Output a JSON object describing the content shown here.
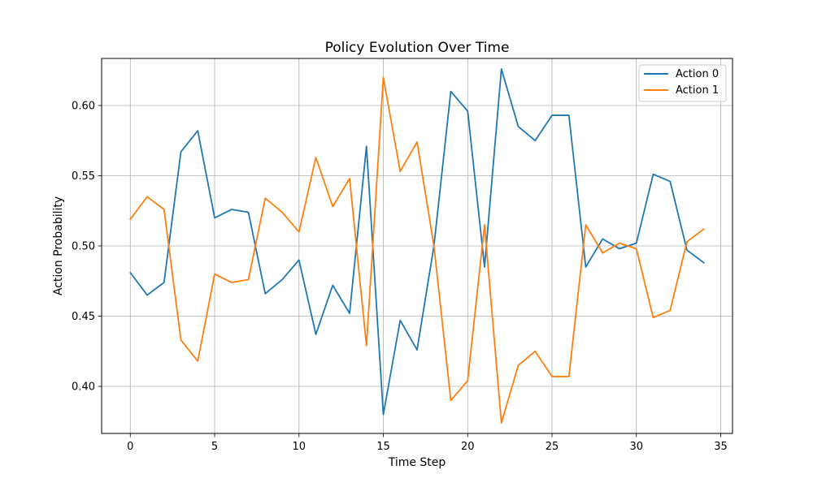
{
  "chart_data": {
    "type": "line",
    "title": "Policy Evolution Over Time",
    "xlabel": "Time Step",
    "ylabel": "Action Probability",
    "xlim": [
      -1.7,
      35.7
    ],
    "ylim": [
      0.3665,
      0.6335
    ],
    "grid": true,
    "legend_position": "top-right",
    "x_ticks": [
      0,
      5,
      10,
      15,
      20,
      25,
      30,
      35
    ],
    "y_ticks": [
      0.4,
      0.45,
      0.5,
      0.55,
      0.6
    ],
    "x_tick_labels": [
      "0",
      "5",
      "10",
      "15",
      "20",
      "25",
      "30",
      "35"
    ],
    "y_tick_labels": [
      "0.40",
      "0.45",
      "0.50",
      "0.55",
      "0.60"
    ],
    "x": [
      0,
      1,
      2,
      3,
      4,
      5,
      6,
      7,
      8,
      9,
      10,
      11,
      12,
      13,
      14,
      15,
      16,
      17,
      18,
      19,
      20,
      21,
      22,
      23,
      24,
      25,
      26,
      27,
      28,
      29,
      30,
      31,
      32,
      33,
      34
    ],
    "series": [
      {
        "name": "Action 0",
        "color": "#1f77b4",
        "values": [
          0.481,
          0.465,
          0.474,
          0.567,
          0.582,
          0.52,
          0.526,
          0.524,
          0.466,
          0.476,
          0.49,
          0.437,
          0.472,
          0.452,
          0.571,
          0.38,
          0.447,
          0.426,
          0.5,
          0.61,
          0.596,
          0.485,
          0.626,
          0.585,
          0.575,
          0.593,
          0.593,
          0.485,
          0.505,
          0.498,
          0.502,
          0.551,
          0.546,
          0.497,
          0.488
        ]
      },
      {
        "name": "Action 1",
        "color": "#ff7f0e",
        "values": [
          0.519,
          0.535,
          0.526,
          0.433,
          0.418,
          0.48,
          0.474,
          0.476,
          0.534,
          0.524,
          0.51,
          0.563,
          0.528,
          0.548,
          0.429,
          0.62,
          0.553,
          0.574,
          0.5,
          0.39,
          0.404,
          0.515,
          0.374,
          0.415,
          0.425,
          0.407,
          0.407,
          0.515,
          0.495,
          0.502,
          0.498,
          0.449,
          0.454,
          0.503,
          0.512
        ]
      }
    ]
  }
}
